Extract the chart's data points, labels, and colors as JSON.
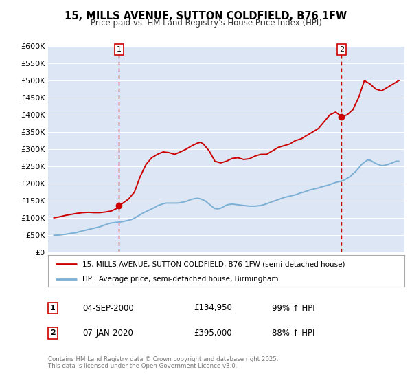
{
  "title": "15, MILLS AVENUE, SUTTON COLDFIELD, B76 1FW",
  "subtitle": "Price paid vs. HM Land Registry's House Price Index (HPI)",
  "fig_bg_color": "#ffffff",
  "plot_bg_color": "#dce6f5",
  "grid_color": "#ffffff",
  "hpi_line_color": "#7bafd4",
  "price_line_color": "#cc0000",
  "marker1_date": 2000.67,
  "marker2_date": 2020.02,
  "marker1_price": 134950,
  "marker2_price": 395000,
  "legend_label1": "15, MILLS AVENUE, SUTTON COLDFIELD, B76 1FW (semi-detached house)",
  "legend_label2": "HPI: Average price, semi-detached house, Birmingham",
  "note1_date": "04-SEP-2000",
  "note1_price": "£134,950",
  "note1_hpi": "99% ↑ HPI",
  "note2_date": "07-JAN-2020",
  "note2_price": "£395,000",
  "note2_hpi": "88% ↑ HPI",
  "footer": "Contains HM Land Registry data © Crown copyright and database right 2025.\nThis data is licensed under the Open Government Licence v3.0.",
  "ylim_min": 0,
  "ylim_max": 600000,
  "xlim_min": 1994.5,
  "xlim_max": 2025.5,
  "hpi_data_x": [
    1995.0,
    1995.25,
    1995.5,
    1995.75,
    1996.0,
    1996.25,
    1996.5,
    1996.75,
    1997.0,
    1997.25,
    1997.5,
    1997.75,
    1998.0,
    1998.25,
    1998.5,
    1998.75,
    1999.0,
    1999.25,
    1999.5,
    1999.75,
    2000.0,
    2000.25,
    2000.5,
    2000.75,
    2001.0,
    2001.25,
    2001.5,
    2001.75,
    2002.0,
    2002.25,
    2002.5,
    2002.75,
    2003.0,
    2003.25,
    2003.5,
    2003.75,
    2004.0,
    2004.25,
    2004.5,
    2004.75,
    2005.0,
    2005.25,
    2005.5,
    2005.75,
    2006.0,
    2006.25,
    2006.5,
    2006.75,
    2007.0,
    2007.25,
    2007.5,
    2007.75,
    2008.0,
    2008.25,
    2008.5,
    2008.75,
    2009.0,
    2009.25,
    2009.5,
    2009.75,
    2010.0,
    2010.25,
    2010.5,
    2010.75,
    2011.0,
    2011.25,
    2011.5,
    2011.75,
    2012.0,
    2012.25,
    2012.5,
    2012.75,
    2013.0,
    2013.25,
    2013.5,
    2013.75,
    2014.0,
    2014.25,
    2014.5,
    2014.75,
    2015.0,
    2015.25,
    2015.5,
    2015.75,
    2016.0,
    2016.25,
    2016.5,
    2016.75,
    2017.0,
    2017.25,
    2017.5,
    2017.75,
    2018.0,
    2018.25,
    2018.5,
    2018.75,
    2019.0,
    2019.25,
    2019.5,
    2019.75,
    2020.0,
    2020.25,
    2020.5,
    2020.75,
    2021.0,
    2021.25,
    2021.5,
    2021.75,
    2022.0,
    2022.25,
    2022.5,
    2022.75,
    2023.0,
    2023.25,
    2023.5,
    2023.75,
    2024.0,
    2024.25,
    2024.5,
    2024.75,
    2025.0
  ],
  "hpi_data_y": [
    49000,
    49500,
    50000,
    51000,
    52000,
    53500,
    55000,
    56000,
    57500,
    60000,
    62000,
    64000,
    66000,
    68000,
    70000,
    72000,
    74000,
    77000,
    80000,
    83000,
    85000,
    86000,
    87000,
    88000,
    89000,
    91000,
    93000,
    95000,
    99000,
    104000,
    109000,
    114000,
    118000,
    122000,
    126000,
    130000,
    135000,
    138000,
    141000,
    143000,
    143000,
    143000,
    143000,
    143000,
    144000,
    146000,
    148000,
    151000,
    154000,
    156000,
    157000,
    155000,
    152000,
    147000,
    140000,
    133000,
    127000,
    126000,
    128000,
    132000,
    137000,
    139000,
    140000,
    139000,
    138000,
    137000,
    136000,
    135000,
    134000,
    134000,
    134000,
    135000,
    136000,
    138000,
    141000,
    144000,
    147000,
    150000,
    153000,
    156000,
    159000,
    161000,
    163000,
    165000,
    167000,
    170000,
    173000,
    175000,
    178000,
    181000,
    183000,
    185000,
    187000,
    190000,
    192000,
    194000,
    197000,
    200000,
    203000,
    205000,
    207000,
    210000,
    215000,
    220000,
    228000,
    235000,
    245000,
    255000,
    262000,
    268000,
    268000,
    263000,
    258000,
    255000,
    252000,
    253000,
    255000,
    258000,
    261000,
    265000,
    265000
  ],
  "price_data_x": [
    1995.0,
    1995.5,
    1996.0,
    1996.5,
    1997.0,
    1997.5,
    1998.0,
    1998.5,
    1999.0,
    1999.5,
    2000.0,
    2000.5,
    2000.67,
    2001.5,
    2002.0,
    2002.5,
    2003.0,
    2003.5,
    2004.0,
    2004.5,
    2005.0,
    2005.5,
    2006.0,
    2006.5,
    2007.0,
    2007.5,
    2007.75,
    2008.0,
    2008.5,
    2009.0,
    2009.5,
    2010.0,
    2010.5,
    2011.0,
    2011.5,
    2012.0,
    2012.5,
    2013.0,
    2013.5,
    2014.0,
    2014.5,
    2015.0,
    2015.5,
    2016.0,
    2016.5,
    2017.0,
    2017.5,
    2018.0,
    2018.5,
    2019.0,
    2019.5,
    2020.02,
    2020.5,
    2021.0,
    2021.5,
    2022.0,
    2022.5,
    2023.0,
    2023.5,
    2024.0,
    2024.5,
    2025.0
  ],
  "price_data_y": [
    100000,
    103000,
    107000,
    110000,
    113000,
    115000,
    116000,
    115000,
    115000,
    117000,
    120000,
    128000,
    134950,
    155000,
    175000,
    220000,
    255000,
    275000,
    285000,
    292000,
    290000,
    285000,
    292000,
    300000,
    310000,
    318000,
    320000,
    315000,
    295000,
    265000,
    260000,
    265000,
    273000,
    275000,
    270000,
    272000,
    280000,
    285000,
    285000,
    295000,
    305000,
    310000,
    315000,
    325000,
    330000,
    340000,
    350000,
    360000,
    380000,
    400000,
    408000,
    395000,
    400000,
    415000,
    450000,
    500000,
    490000,
    475000,
    470000,
    480000,
    490000,
    500000
  ]
}
